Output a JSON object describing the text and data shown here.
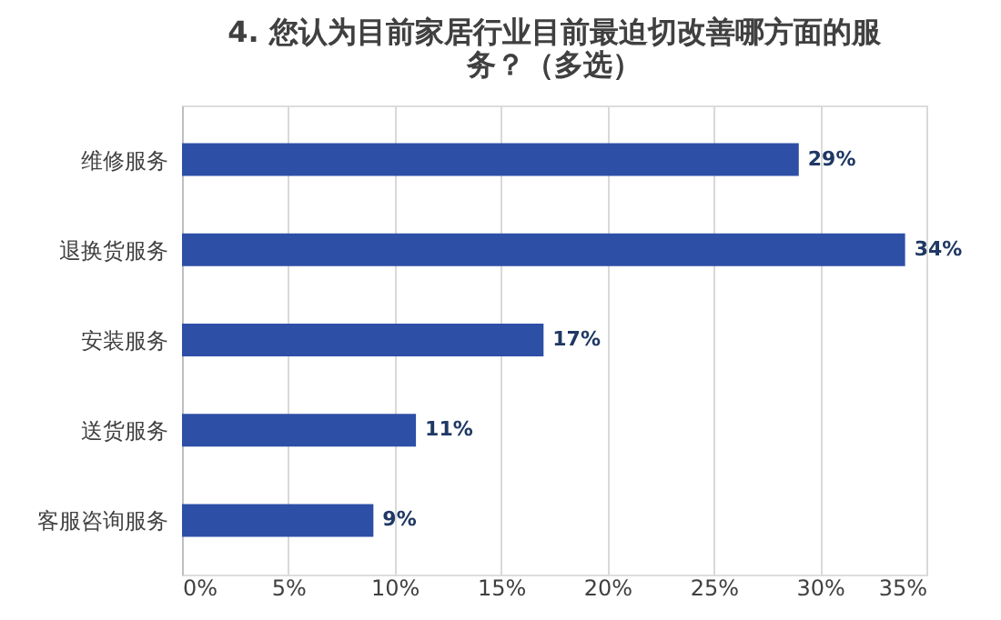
{
  "chart_data": {
    "type": "bar",
    "orientation": "horizontal",
    "title": "4. 您认为目前家居行业目前最迫切改善哪方面的服务？（多选）",
    "categories": [
      "维修服务",
      "退换货服务",
      "安装服务",
      "送货服务",
      "客服咨询服务"
    ],
    "values": [
      29,
      34,
      17,
      11,
      9
    ],
    "color": "#2d4fa6",
    "value_labels": [
      "29%",
      "34%",
      "17%",
      "11%",
      "9%"
    ],
    "xlim": [
      0,
      35
    ],
    "xticks": [
      {
        "value": 0,
        "label": "0%"
      },
      {
        "value": 5,
        "label": "5%"
      },
      {
        "value": 10,
        "label": "10%"
      },
      {
        "value": 15,
        "label": "15%"
      },
      {
        "value": 20,
        "label": "20%"
      },
      {
        "value": 25,
        "label": "25%"
      },
      {
        "value": 30,
        "label": "30%"
      },
      {
        "value": 35,
        "label": "35%"
      }
    ],
    "grid": "x"
  }
}
